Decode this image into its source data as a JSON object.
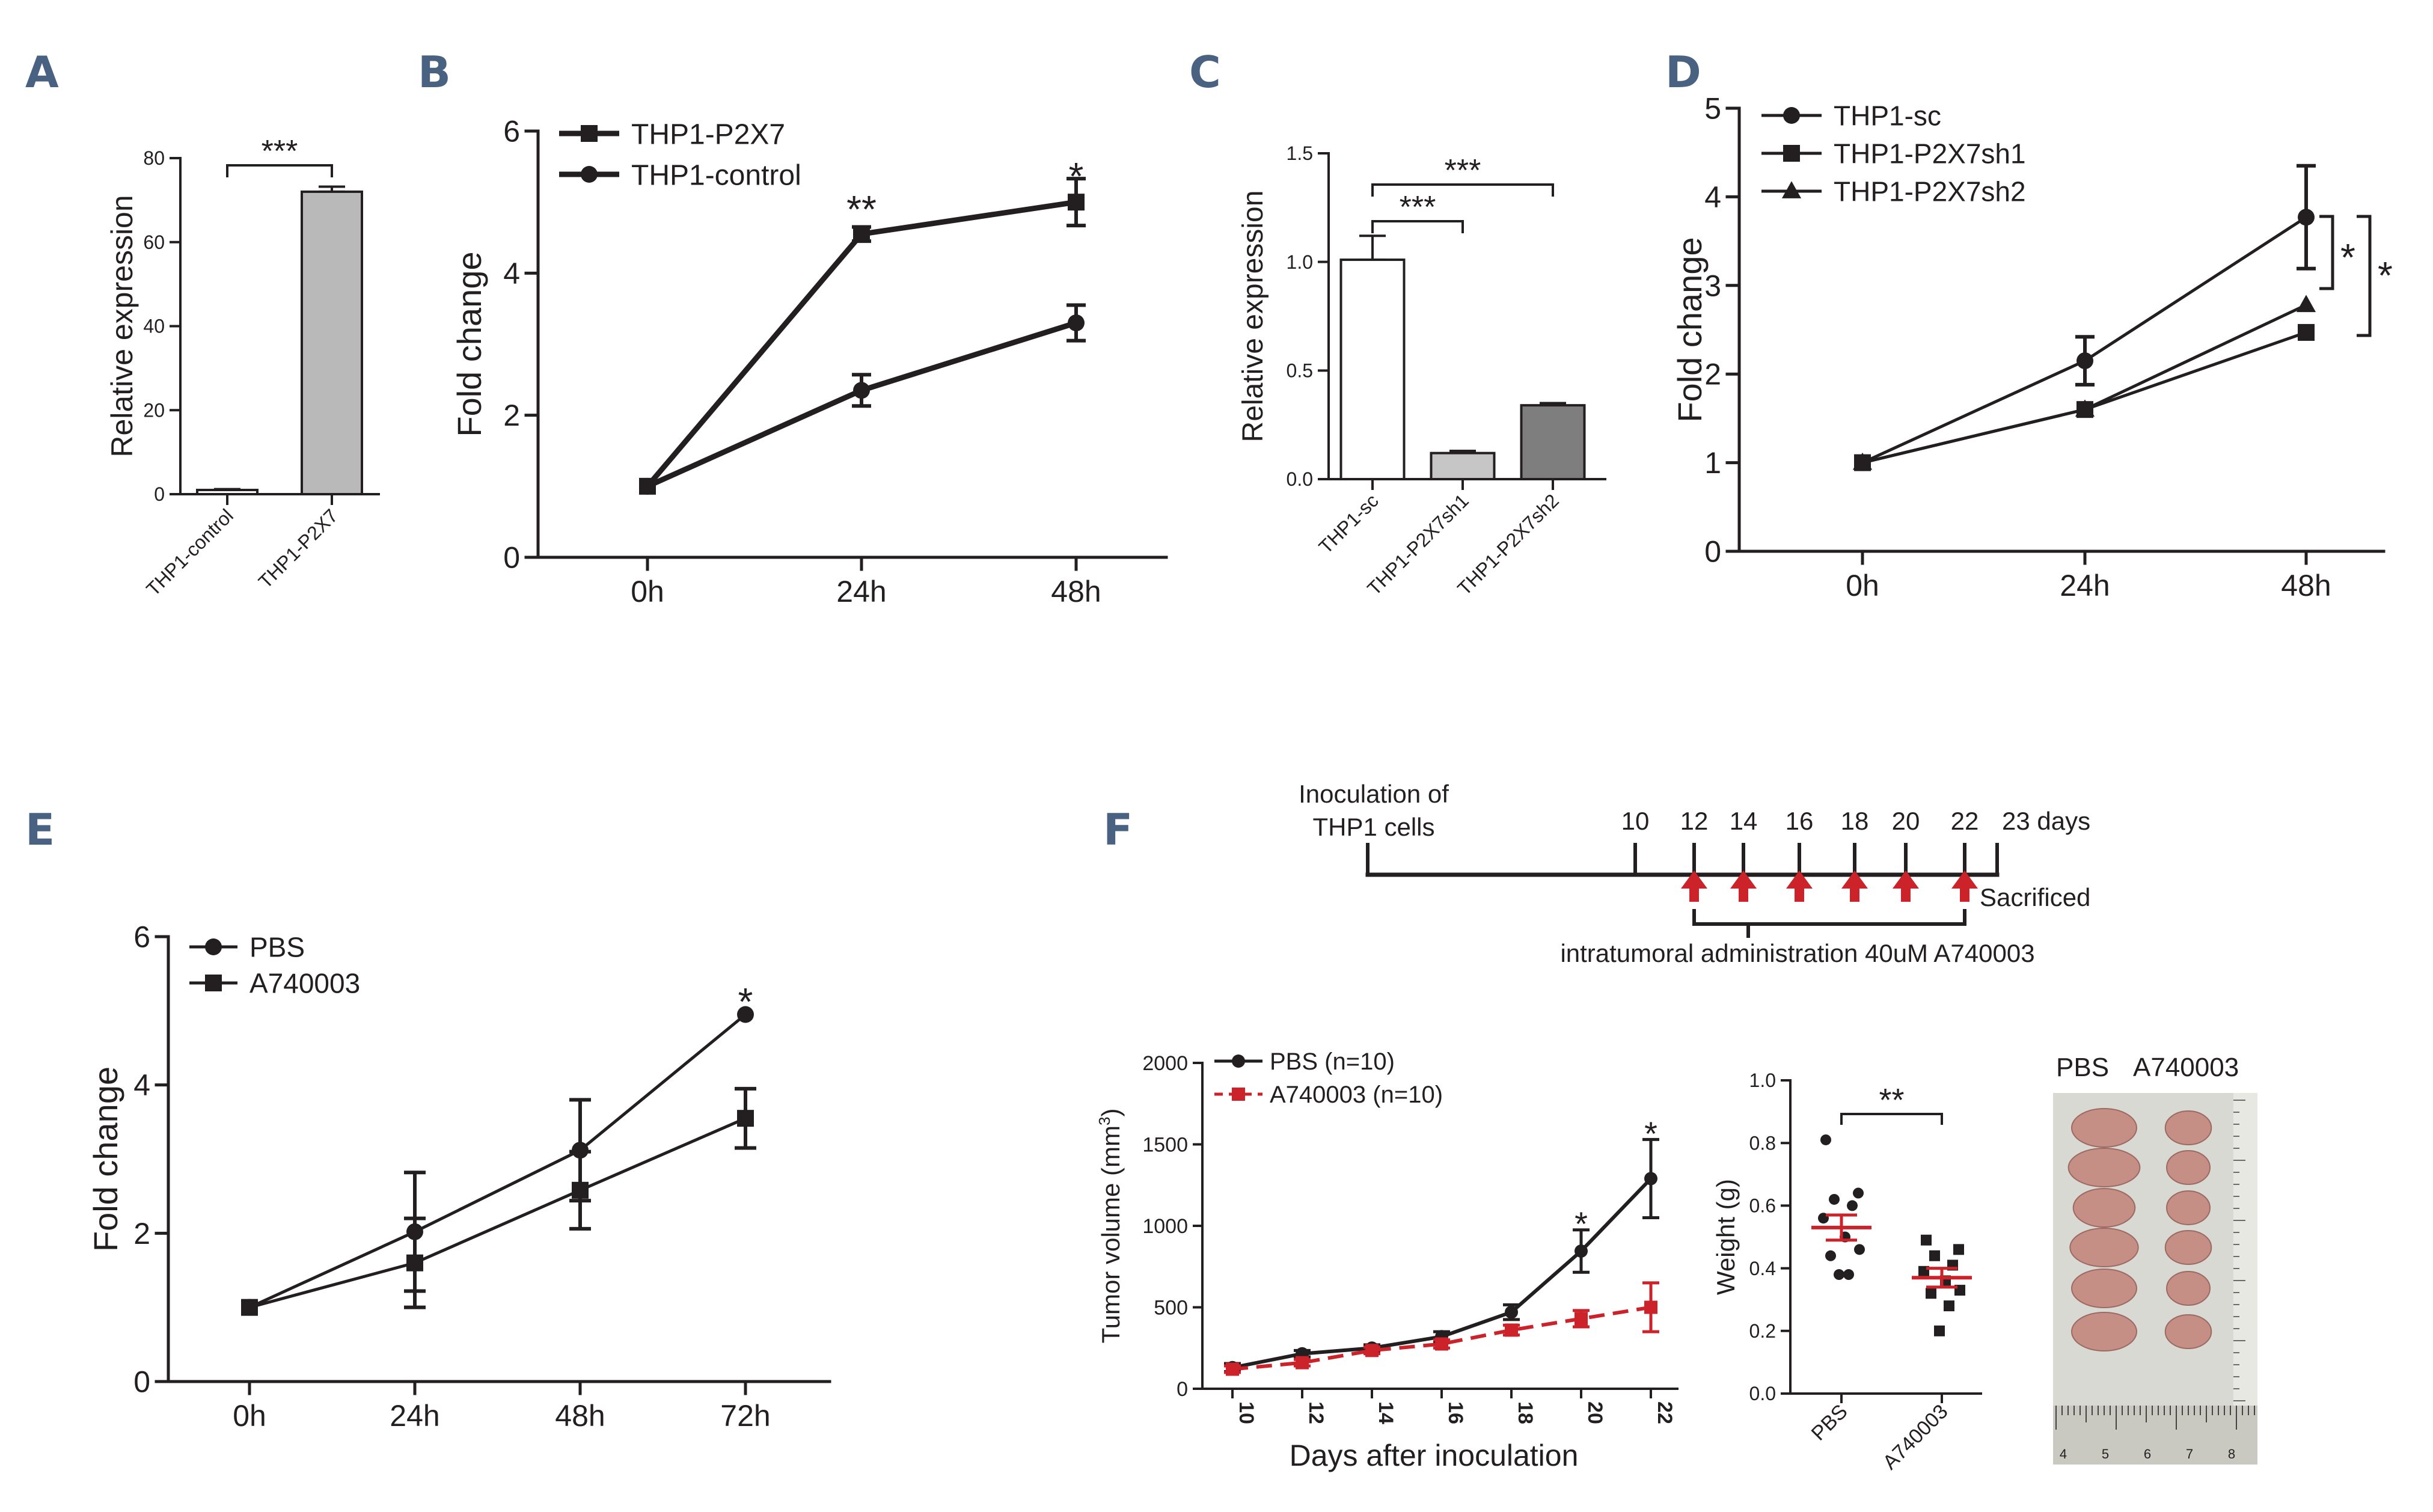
{
  "colors": {
    "ink": "#231f20",
    "panel_label": "#4a6282",
    "bar_gray": "#b9b9b9",
    "bar_light": "#c6c6c6",
    "bar_dark": "#7e7e7e",
    "red": "#cc2229",
    "photo_bg": "#d9d9d4",
    "tumor": "#c58f86"
  },
  "panel_labels": [
    "A",
    "B",
    "C",
    "D",
    "E",
    "F"
  ],
  "chart_data": [
    {
      "id": "A",
      "type": "bar",
      "categories": [
        "THP1-control",
        "THP1-P2X7"
      ],
      "values": [
        1,
        72
      ],
      "errors": [
        0.2,
        1.2
      ],
      "ylabel": "Relative expression",
      "ylim": [
        0,
        80
      ],
      "yticks": [
        "0",
        "20",
        "40",
        "60",
        "80"
      ],
      "significance": [
        {
          "from": 0,
          "to": 1,
          "label": "***"
        }
      ]
    },
    {
      "id": "B",
      "type": "line",
      "categories": [
        "0h",
        "24h",
        "48h"
      ],
      "ylabel": "Fold change",
      "ylim": [
        0,
        6
      ],
      "yticks": [
        "0",
        "2",
        "4",
        "6"
      ],
      "series": [
        {
          "name": "THP1-P2X7",
          "marker": "square",
          "values": [
            1,
            4.55,
            5.0
          ],
          "errors": [
            0.02,
            0.1,
            0.33
          ]
        },
        {
          "name": "THP1-control",
          "marker": "circle",
          "values": [
            1,
            2.35,
            3.3
          ],
          "errors": [
            0.02,
            0.22,
            0.25
          ]
        }
      ],
      "annotations": [
        {
          "category": 1,
          "label": "**"
        },
        {
          "category": 2,
          "label": "*"
        }
      ],
      "legend": "top-left"
    },
    {
      "id": "C",
      "type": "bar",
      "categories": [
        "THP1-sc",
        "THP1-P2X7sh1",
        "THP1-P2X7sh2"
      ],
      "values": [
        1.01,
        0.12,
        0.34
      ],
      "errors": [
        0.11,
        0.01,
        0.01
      ],
      "ylabel": "Relative expression",
      "ylim": [
        0,
        1.5
      ],
      "yticks": [
        "0.0",
        "0.5",
        "1.0",
        "1.5"
      ],
      "significance": [
        {
          "from": 0,
          "to": 1,
          "label": "***"
        },
        {
          "from": 0,
          "to": 2,
          "label": "***"
        }
      ]
    },
    {
      "id": "D",
      "type": "line",
      "categories": [
        "0h",
        "24h",
        "48h"
      ],
      "ylabel": "Fold change",
      "ylim": [
        0,
        5
      ],
      "yticks": [
        "0",
        "1",
        "2",
        "3",
        "4",
        "5"
      ],
      "series": [
        {
          "name": "THP1-sc",
          "marker": "circle",
          "values": [
            1,
            2.15,
            3.77
          ],
          "errors": [
            0.02,
            0.27,
            0.58
          ]
        },
        {
          "name": "THP1-P2X7sh1",
          "marker": "square",
          "values": [
            1,
            1.6,
            2.47
          ],
          "errors": [
            0.02,
            0.03,
            0.03
          ]
        },
        {
          "name": "THP1-P2X7sh2",
          "marker": "triangle",
          "values": [
            1,
            1.6,
            2.78
          ],
          "errors": [
            0.02,
            0.03,
            0.03
          ]
        }
      ],
      "annotations": [
        {
          "label": "*"
        },
        {
          "label": "*"
        }
      ],
      "legend": "top-left"
    },
    {
      "id": "E",
      "type": "line",
      "categories": [
        "0h",
        "24h",
        "48h",
        "72h"
      ],
      "ylabel": "Fold change",
      "ylim": [
        0,
        6
      ],
      "yticks": [
        "0",
        "2",
        "4",
        "6"
      ],
      "series": [
        {
          "name": "PBS",
          "marker": "circle",
          "values": [
            1,
            2.02,
            3.12,
            4.95
          ],
          "errors": [
            0.02,
            0.8,
            0.68,
            0.02
          ]
        },
        {
          "name": "A740003",
          "marker": "square",
          "values": [
            1,
            1.6,
            2.58,
            3.55
          ],
          "errors": [
            0.02,
            0.6,
            0.52,
            0.4
          ]
        }
      ],
      "annotations": [
        {
          "category": 3,
          "label": "*"
        }
      ],
      "legend": "top-left"
    },
    {
      "id": "F-volume",
      "type": "line",
      "x": [
        "10",
        "12",
        "14",
        "16",
        "18",
        "20",
        "22"
      ],
      "xlabel": "Days after inoculation",
      "ylabel": "Tumor volume (mm",
      "ylabel_sup": "3",
      "ylabel_end": ")",
      "ylim": [
        0,
        2000
      ],
      "yticks": [
        "0",
        "500",
        "1000",
        "1500",
        "2000"
      ],
      "series": [
        {
          "name": "PBS (n=10)",
          "marker": "circle",
          "line": "solid",
          "color": "#231f20",
          "values": [
            130,
            215,
            250,
            320,
            470,
            845,
            1290
          ],
          "errors": [
            25,
            20,
            20,
            30,
            45,
            130,
            240
          ]
        },
        {
          "name": "A740003 (n=10)",
          "marker": "square",
          "line": "dashed",
          "color": "#cc2229",
          "values": [
            120,
            160,
            235,
            275,
            360,
            430,
            500
          ],
          "errors": [
            20,
            20,
            20,
            25,
            30,
            50,
            150
          ]
        }
      ],
      "annotations": [
        {
          "x": "20",
          "label": "*"
        },
        {
          "x": "22",
          "label": "*"
        }
      ],
      "legend": "top-left"
    },
    {
      "id": "F-weight",
      "type": "scatter",
      "categories": [
        "PBS",
        "A740003"
      ],
      "ylabel": "Weight (g)",
      "ylim": [
        0,
        1.0
      ],
      "yticks": [
        "0.0",
        "0.2",
        "0.4",
        "0.6",
        "0.8",
        "1.0"
      ],
      "groups": [
        {
          "name": "PBS",
          "marker": "circle",
          "points": [
            0.81,
            0.64,
            0.62,
            0.6,
            0.56,
            0.5,
            0.46,
            0.44,
            0.38,
            0.38
          ],
          "mean": 0.53,
          "sem": 0.04
        },
        {
          "name": "A740003",
          "marker": "square",
          "points": [
            0.49,
            0.46,
            0.44,
            0.41,
            0.39,
            0.36,
            0.33,
            0.32,
            0.28,
            0.2
          ],
          "mean": 0.37,
          "sem": 0.03
        }
      ],
      "significance": [
        {
          "from": 0,
          "to": 1,
          "label": "**"
        }
      ]
    }
  ],
  "timeline": {
    "start_label_line1": "Inoculation of",
    "start_label_line2": "THP1 cells",
    "day_labels": [
      "10",
      "12",
      "14",
      "16",
      "18",
      "20",
      "22"
    ],
    "end_label": "23 days",
    "sacrificed_label": "Sacrificed",
    "admin_label": "intratumoral administration 40uM A740003"
  },
  "photo": {
    "labels": [
      "PBS",
      "A740003"
    ],
    "ruler_numbers": [
      "4",
      "5",
      "6",
      "7",
      "8"
    ]
  }
}
